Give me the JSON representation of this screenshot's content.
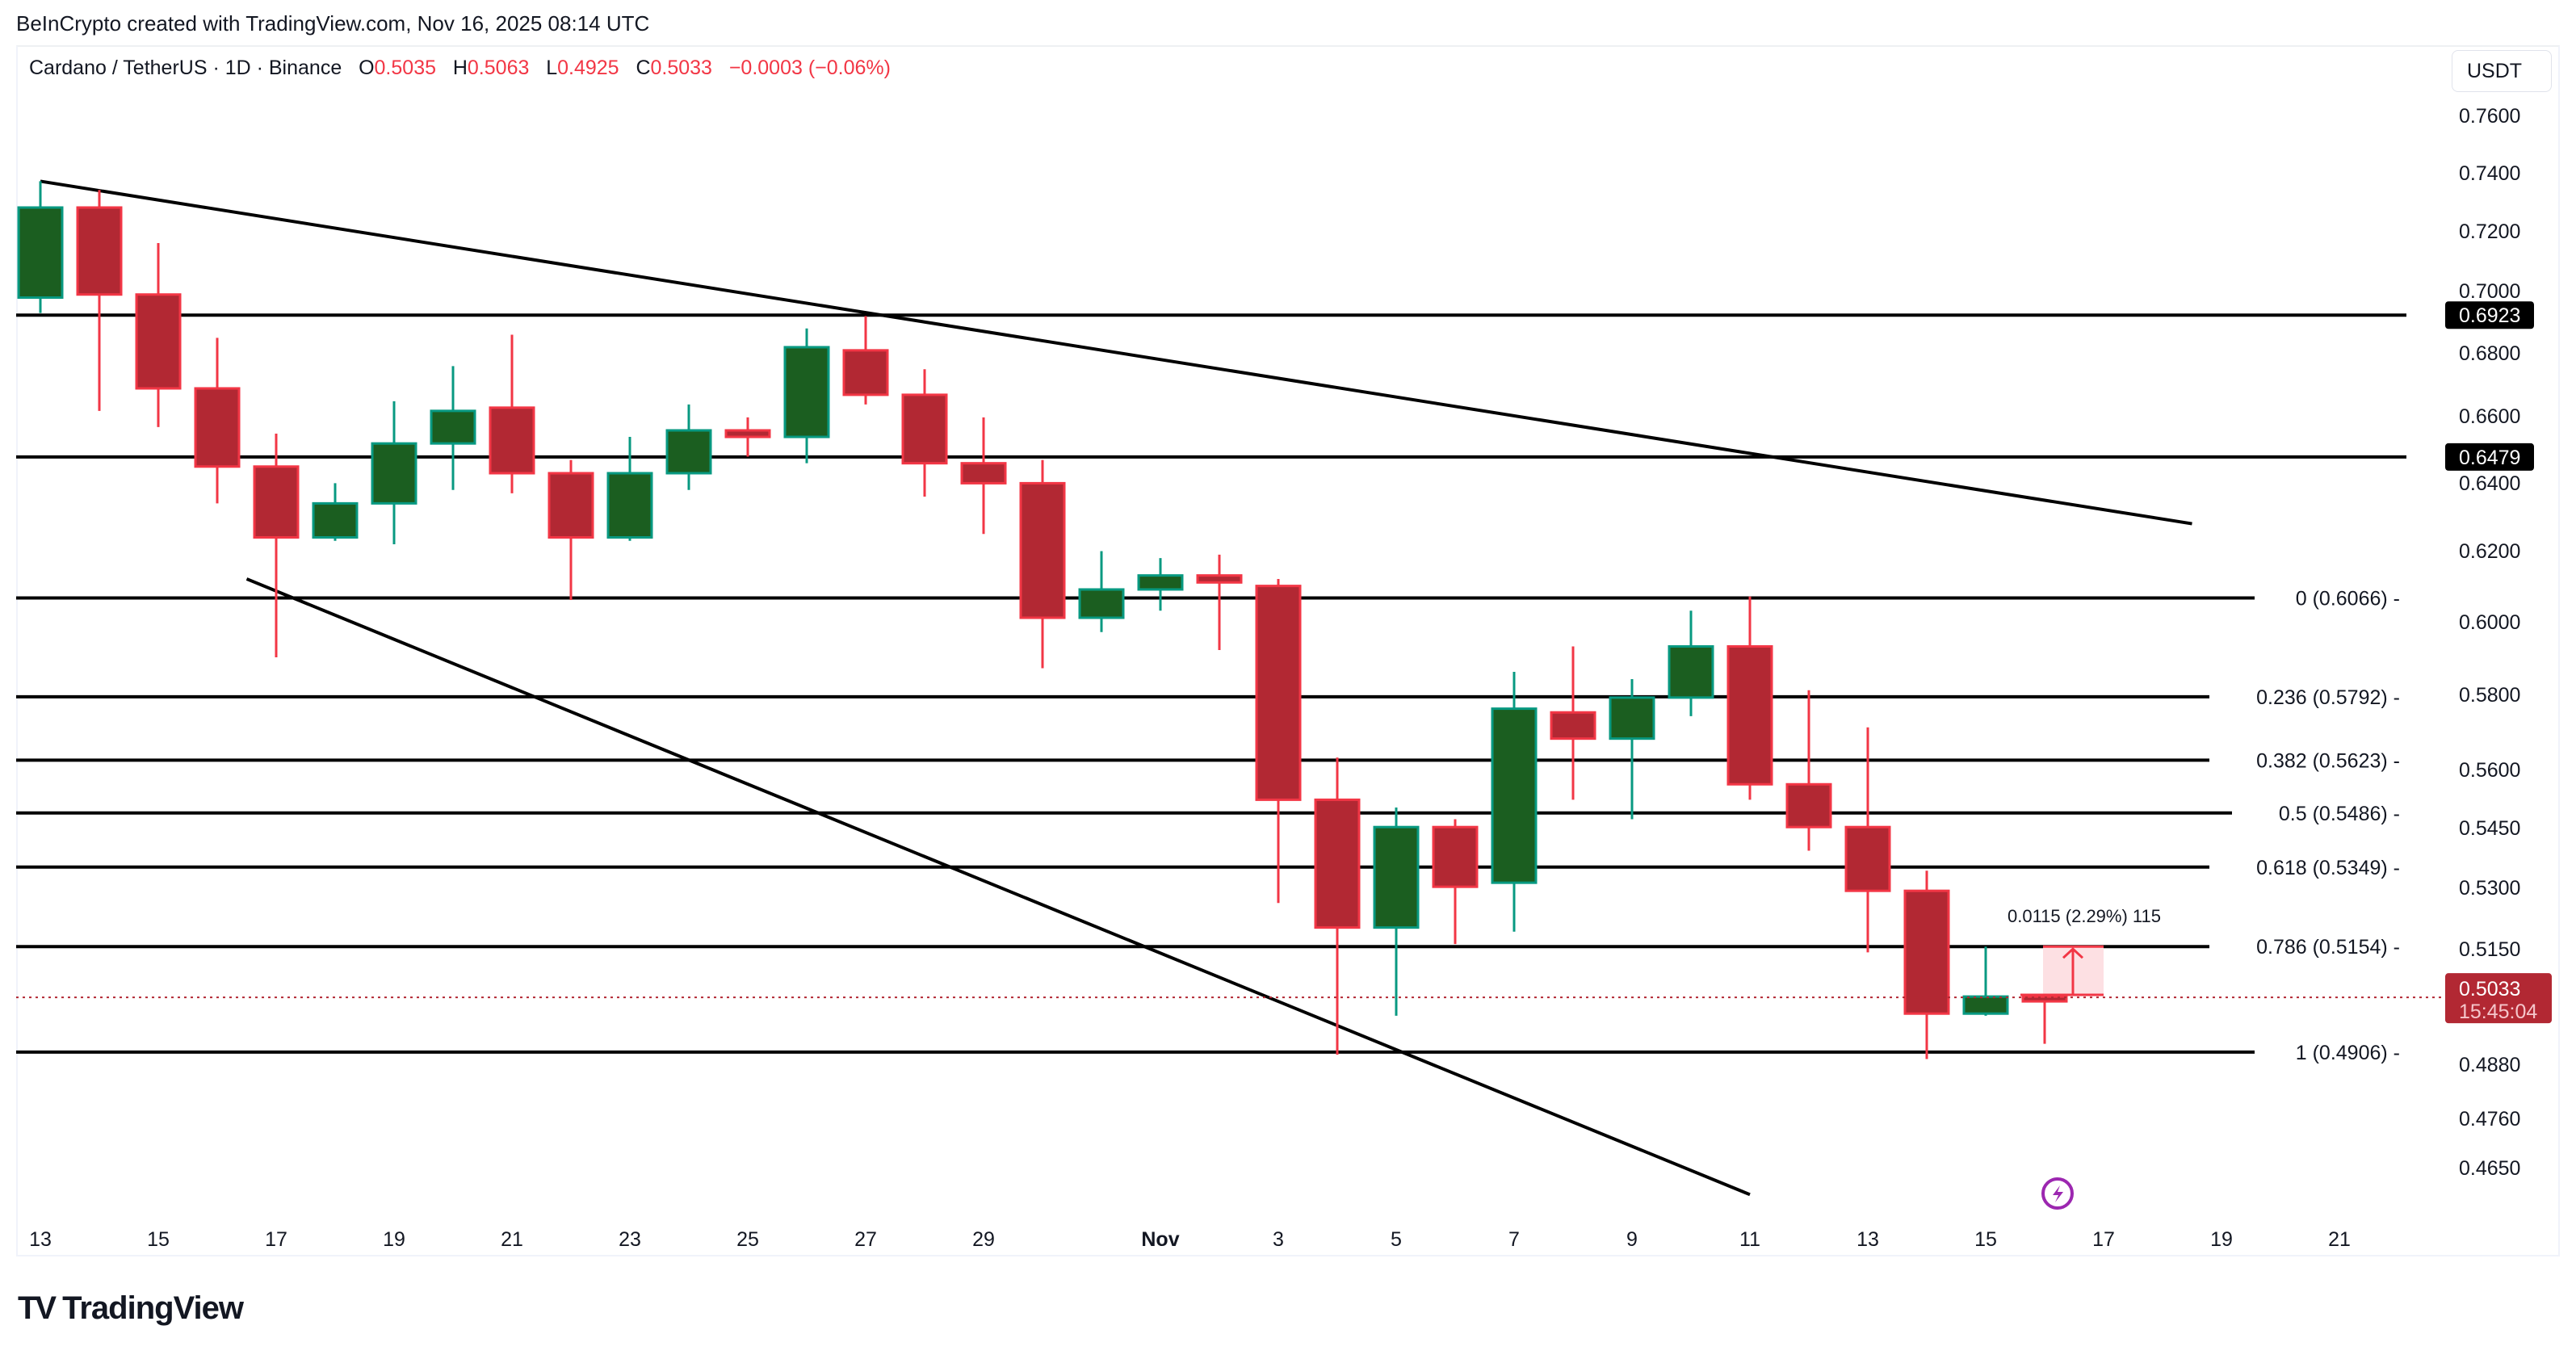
{
  "credit": "BeInCrypto created with TradingView.com, Nov 16, 2025 08:14 UTC",
  "legend": {
    "symbol": "Cardano / TetherUS · 1D · Binance",
    "o_label": "O",
    "o": "0.5035",
    "h_label": "H",
    "h": "0.5063",
    "l_label": "L",
    "l": "0.4925",
    "c_label": "C",
    "c": "0.5033",
    "change": "−0.0003 (−0.06%)"
  },
  "currency": "USDT",
  "colors": {
    "up_body": "#1b5e20",
    "up_border": "#089981",
    "down_body": "#b22833",
    "down_border": "#f23645",
    "line": "#000000",
    "price_label_bg": "#b22833",
    "measure_fill": "#fde0e3"
  },
  "last_price": {
    "value": "0.5033",
    "countdown": "15:45:04"
  },
  "measure_label": "0.0115 (2.29%) 115",
  "logo_text": "TradingView",
  "chart_data": {
    "type": "candlestick",
    "title": "Cardano / TetherUS · 1D · Binance",
    "xlabel": "",
    "ylabel": "USDT",
    "scale": "log",
    "ylim": [
      0.458,
      0.775
    ],
    "x_ticks": [
      "13",
      "15",
      "17",
      "19",
      "21",
      "23",
      "25",
      "27",
      "29",
      "Nov",
      "3",
      "5",
      "7",
      "9",
      "11",
      "13",
      "15",
      "17",
      "19",
      "21"
    ],
    "y_ticks": [
      "0.7600",
      "0.7400",
      "0.7200",
      "0.7000",
      "0.6800",
      "0.6600",
      "0.6400",
      "0.6200",
      "0.6000",
      "0.5800",
      "0.5600",
      "0.5450",
      "0.5300",
      "0.5150",
      "0.4880",
      "0.4760",
      "0.4650"
    ],
    "horizontal_levels": [
      {
        "price": 0.6923,
        "label": "0.6923",
        "badge": true
      },
      {
        "price": 0.6479,
        "label": "0.6479",
        "badge": true
      }
    ],
    "fib_levels": [
      {
        "ratio": "0",
        "price": 0.6066,
        "label": "0 (0.6066)"
      },
      {
        "ratio": "0.236",
        "price": 0.5792,
        "label": "0.236 (0.5792)"
      },
      {
        "ratio": "0.382",
        "price": 0.5623,
        "label": "0.382 (0.5623)"
      },
      {
        "ratio": "0.5",
        "price": 0.5486,
        "label": "0.5 (0.5486)"
      },
      {
        "ratio": "0.618",
        "price": 0.5349,
        "label": "0.618 (0.5349)"
      },
      {
        "ratio": "0.786",
        "price": 0.5154,
        "label": "0.786 (0.5154)"
      },
      {
        "ratio": "1",
        "price": 0.4906,
        "label": "1 (0.4906)"
      }
    ],
    "trendlines": [
      {
        "name": "upper-wedge-line",
        "from": {
          "date": "Oct 13",
          "price": 0.737
        },
        "to": {
          "date": "Nov 19",
          "price": 0.628
        }
      },
      {
        "name": "lower-wedge-line",
        "from": {
          "date": "Oct 16",
          "price": 0.612
        },
        "to": {
          "date": "Nov 11",
          "price": 0.459
        }
      }
    ],
    "candles": [
      {
        "date": "Oct 13",
        "o": 0.698,
        "h": 0.737,
        "l": 0.693,
        "c": 0.728
      },
      {
        "date": "Oct 14",
        "o": 0.728,
        "h": 0.734,
        "l": 0.662,
        "c": 0.699
      },
      {
        "date": "Oct 15",
        "o": 0.699,
        "h": 0.716,
        "l": 0.657,
        "c": 0.669
      },
      {
        "date": "Oct 16",
        "o": 0.669,
        "h": 0.685,
        "l": 0.634,
        "c": 0.645
      },
      {
        "date": "Oct 17",
        "o": 0.645,
        "h": 0.655,
        "l": 0.59,
        "c": 0.624
      },
      {
        "date": "Oct 18",
        "o": 0.624,
        "h": 0.64,
        "l": 0.623,
        "c": 0.634
      },
      {
        "date": "Oct 19",
        "o": 0.634,
        "h": 0.665,
        "l": 0.622,
        "c": 0.652
      },
      {
        "date": "Oct 20",
        "o": 0.652,
        "h": 0.676,
        "l": 0.638,
        "c": 0.662
      },
      {
        "date": "Oct 21",
        "o": 0.663,
        "h": 0.686,
        "l": 0.637,
        "c": 0.643
      },
      {
        "date": "Oct 22",
        "o": 0.643,
        "h": 0.647,
        "l": 0.606,
        "c": 0.624
      },
      {
        "date": "Oct 23",
        "o": 0.624,
        "h": 0.654,
        "l": 0.623,
        "c": 0.643
      },
      {
        "date": "Oct 24",
        "o": 0.643,
        "h": 0.664,
        "l": 0.638,
        "c": 0.656
      },
      {
        "date": "Oct 25",
        "o": 0.656,
        "h": 0.66,
        "l": 0.648,
        "c": 0.654
      },
      {
        "date": "Oct 26",
        "o": 0.654,
        "h": 0.688,
        "l": 0.646,
        "c": 0.682
      },
      {
        "date": "Oct 27",
        "o": 0.681,
        "h": 0.692,
        "l": 0.664,
        "c": 0.667
      },
      {
        "date": "Oct 28",
        "o": 0.667,
        "h": 0.675,
        "l": 0.636,
        "c": 0.646
      },
      {
        "date": "Oct 29",
        "o": 0.646,
        "h": 0.66,
        "l": 0.625,
        "c": 0.64
      },
      {
        "date": "Oct 30",
        "o": 0.64,
        "h": 0.647,
        "l": 0.587,
        "c": 0.601
      },
      {
        "date": "Oct 31",
        "o": 0.601,
        "h": 0.62,
        "l": 0.597,
        "c": 0.609
      },
      {
        "date": "Nov 1",
        "o": 0.609,
        "h": 0.618,
        "l": 0.603,
        "c": 0.613
      },
      {
        "date": "Nov 2",
        "o": 0.613,
        "h": 0.619,
        "l": 0.592,
        "c": 0.611
      },
      {
        "date": "Nov 3",
        "o": 0.61,
        "h": 0.612,
        "l": 0.526,
        "c": 0.552
      },
      {
        "date": "Nov 4",
        "o": 0.552,
        "h": 0.563,
        "l": 0.49,
        "c": 0.52
      },
      {
        "date": "Nov 5",
        "o": 0.52,
        "h": 0.55,
        "l": 0.499,
        "c": 0.545
      },
      {
        "date": "Nov 6",
        "o": 0.545,
        "h": 0.547,
        "l": 0.516,
        "c": 0.53
      },
      {
        "date": "Nov 7",
        "o": 0.531,
        "h": 0.586,
        "l": 0.519,
        "c": 0.576
      },
      {
        "date": "Nov 8",
        "o": 0.575,
        "h": 0.593,
        "l": 0.552,
        "c": 0.568
      },
      {
        "date": "Nov 9",
        "o": 0.568,
        "h": 0.584,
        "l": 0.547,
        "c": 0.579
      },
      {
        "date": "Nov 10",
        "o": 0.579,
        "h": 0.603,
        "l": 0.574,
        "c": 0.593
      },
      {
        "date": "Nov 11",
        "o": 0.593,
        "h": 0.607,
        "l": 0.552,
        "c": 0.556
      },
      {
        "date": "Nov 12",
        "o": 0.556,
        "h": 0.581,
        "l": 0.539,
        "c": 0.545
      },
      {
        "date": "Nov 13",
        "o": 0.545,
        "h": 0.571,
        "l": 0.514,
        "c": 0.529
      },
      {
        "date": "Nov 14",
        "o": 0.529,
        "h": 0.534,
        "l": 0.489,
        "c": 0.4995
      },
      {
        "date": "Nov 15",
        "o": 0.4995,
        "h": 0.5154,
        "l": 0.499,
        "c": 0.5035
      },
      {
        "date": "Nov 16",
        "o": 0.5035,
        "h": 0.5063,
        "l": 0.4925,
        "c": 0.5033
      }
    ],
    "annotations": [
      {
        "type": "price-range-measure",
        "label": "0.0115 (2.29%) 115",
        "from": 0.5039,
        "to": 0.5154
      },
      {
        "type": "lightning-event-marker",
        "date": "Nov 16"
      }
    ],
    "grid": false,
    "legend_position": "top-left"
  }
}
